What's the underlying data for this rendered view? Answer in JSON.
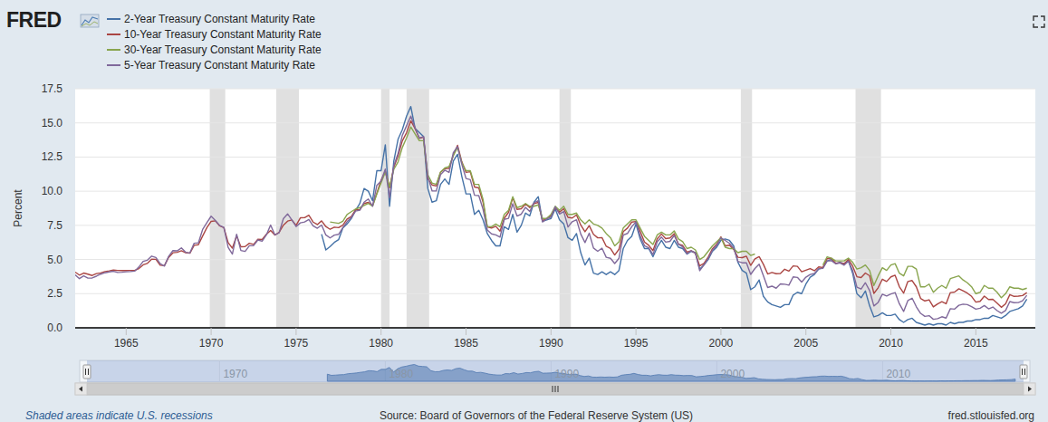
{
  "chart_data": {
    "type": "line",
    "logo": "FRED",
    "y_label": "Percent",
    "note": "Shaded areas indicate U.S. recessions",
    "source": "Source: Board of Governors of the Federal Reserve System (US)",
    "url": "fred.stlouisfed.org",
    "legend": "top-left",
    "grid": true,
    "xlim": [
      1962,
      2018.5
    ],
    "xticks": [
      1965,
      1970,
      1975,
      1980,
      1985,
      1990,
      1995,
      2000,
      2005,
      2010,
      2015
    ],
    "ylim": [
      0,
      17.5
    ],
    "yticks": [
      {
        "value": 0,
        "label": "0.0"
      },
      2.5,
      {
        "value": 5,
        "label": "5.0"
      },
      7.5,
      {
        "value": 10,
        "label": "10.0"
      },
      12.5,
      {
        "value": 15,
        "label": "15.0"
      },
      17.5
    ],
    "navigator_xticks": [
      1970,
      1980,
      1990,
      2000,
      2010
    ],
    "recessions": [
      {
        "start": 1969.92,
        "end": 1970.83
      },
      {
        "start": 1973.83,
        "end": 1975.17
      },
      {
        "start": 1980.0,
        "end": 1980.5
      },
      {
        "start": 1981.5,
        "end": 1982.83
      },
      {
        "start": 1990.5,
        "end": 1991.17
      },
      {
        "start": 2001.17,
        "end": 2001.83
      },
      {
        "start": 2007.92,
        "end": 2009.42
      }
    ],
    "x": [
      1962,
      1962.25,
      1962.5,
      1962.75,
      1963,
      1963.25,
      1963.5,
      1963.75,
      1964,
      1964.25,
      1964.5,
      1964.75,
      1965,
      1965.25,
      1965.5,
      1965.75,
      1966,
      1966.25,
      1966.5,
      1966.75,
      1967,
      1967.25,
      1967.5,
      1967.75,
      1968,
      1968.25,
      1968.5,
      1968.75,
      1969,
      1969.25,
      1969.5,
      1969.75,
      1970,
      1970.25,
      1970.5,
      1970.75,
      1971,
      1971.25,
      1971.5,
      1971.75,
      1972,
      1972.25,
      1972.5,
      1972.75,
      1973,
      1973.25,
      1973.5,
      1973.75,
      1974,
      1974.25,
      1974.5,
      1974.75,
      1975,
      1975.25,
      1975.5,
      1975.75,
      1976,
      1976.25,
      1976.5,
      1976.75,
      1977,
      1977.25,
      1977.5,
      1977.75,
      1978,
      1978.25,
      1978.5,
      1978.75,
      1979,
      1979.25,
      1979.5,
      1979.75,
      1980,
      1980.25,
      1980.5,
      1980.75,
      1981,
      1981.25,
      1981.5,
      1981.75,
      1982,
      1982.25,
      1982.5,
      1982.75,
      1983,
      1983.25,
      1983.5,
      1983.75,
      1984,
      1984.25,
      1984.5,
      1984.75,
      1985,
      1985.25,
      1985.5,
      1985.75,
      1986,
      1986.25,
      1986.5,
      1986.75,
      1987,
      1987.25,
      1987.5,
      1987.75,
      1988,
      1988.25,
      1988.5,
      1988.75,
      1989,
      1989.25,
      1989.5,
      1989.75,
      1990,
      1990.25,
      1990.5,
      1990.75,
      1991,
      1991.25,
      1991.5,
      1991.75,
      1992,
      1992.25,
      1992.5,
      1992.75,
      1993,
      1993.25,
      1993.5,
      1993.75,
      1994,
      1994.25,
      1994.5,
      1994.75,
      1995,
      1995.25,
      1995.5,
      1995.75,
      1996,
      1996.25,
      1996.5,
      1996.75,
      1997,
      1997.25,
      1997.5,
      1997.75,
      1998,
      1998.25,
      1998.5,
      1998.75,
      1999,
      1999.25,
      1999.5,
      1999.75,
      2000,
      2000.25,
      2000.5,
      2000.75,
      2001,
      2001.25,
      2001.5,
      2001.75,
      2002,
      2002.25,
      2002.5,
      2002.75,
      2003,
      2003.25,
      2003.5,
      2003.75,
      2004,
      2004.25,
      2004.5,
      2004.75,
      2005,
      2005.25,
      2005.5,
      2005.75,
      2006,
      2006.25,
      2006.5,
      2006.75,
      2007,
      2007.25,
      2007.5,
      2007.75,
      2008,
      2008.25,
      2008.5,
      2008.75,
      2009,
      2009.25,
      2009.5,
      2009.75,
      2010,
      2010.25,
      2010.5,
      2010.75,
      2011,
      2011.25,
      2011.5,
      2011.75,
      2012,
      2012.25,
      2012.5,
      2012.75,
      2013,
      2013.25,
      2013.5,
      2013.75,
      2014,
      2014.25,
      2014.5,
      2014.75,
      2015,
      2015.25,
      2015.5,
      2015.75,
      2016,
      2016.25,
      2016.5,
      2016.75,
      2017,
      2017.25,
      2017.5,
      2017.75,
      2018
    ],
    "series": [
      {
        "name": "2-Year Treasury Constant Maturity Rate",
        "color": "#4572a7",
        "values": [
          null,
          null,
          null,
          null,
          null,
          null,
          null,
          null,
          null,
          null,
          null,
          null,
          null,
          null,
          null,
          null,
          null,
          null,
          null,
          null,
          null,
          null,
          null,
          null,
          null,
          null,
          null,
          null,
          null,
          null,
          null,
          null,
          null,
          null,
          null,
          null,
          null,
          null,
          null,
          null,
          null,
          null,
          null,
          null,
          null,
          null,
          null,
          null,
          null,
          null,
          null,
          null,
          null,
          null,
          null,
          null,
          null,
          null,
          6.85,
          5.7,
          5.95,
          6.25,
          6.45,
          7.3,
          7.6,
          8,
          8.6,
          9.1,
          10.2,
          10,
          9.3,
          11.5,
          11.5,
          13.4,
          8.9,
          12.2,
          13.8,
          14.5,
          15.5,
          16.2,
          14.6,
          14.3,
          14,
          10.2,
          9.2,
          9.3,
          10.5,
          10.9,
          10.5,
          12.2,
          12.7,
          11.1,
          9.8,
          9.8,
          8.3,
          8.6,
          7.9,
          6.9,
          6.4,
          6,
          6,
          7.4,
          7.2,
          8.3,
          7,
          7.5,
          8.4,
          8.2,
          9.2,
          9.6,
          7.8,
          7.9,
          8,
          8.7,
          7.9,
          7.6,
          6.6,
          6.4,
          6.9,
          5.5,
          4.6,
          5.1,
          4,
          3.9,
          4.1,
          3.9,
          4.1,
          3.9,
          4.2,
          5.8,
          6.4,
          6.7,
          7.6,
          6.5,
          5.8,
          5.8,
          5.2,
          5.9,
          6.4,
          5.9,
          5.8,
          6.4,
          5.9,
          5.8,
          5.4,
          5.6,
          5.5,
          4.3,
          4.6,
          5,
          5.6,
          5.9,
          6.4,
          6.5,
          6.4,
          6,
          4.8,
          4.2,
          4,
          2.8,
          3,
          3.5,
          2.3,
          1.9,
          1.7,
          1.6,
          1.5,
          1.7,
          1.7,
          2.4,
          2.6,
          2.5,
          3.2,
          3.7,
          3.9,
          4.3,
          4.4,
          4.9,
          5,
          4.7,
          4.8,
          4.7,
          4.9,
          4,
          2.5,
          2.2,
          2.7,
          1.6,
          0.8,
          0.9,
          1.1,
          0.9,
          0.9,
          1,
          0.6,
          0.4,
          0.6,
          0.7,
          0.4,
          0.3,
          0.2,
          0.3,
          0.2,
          0.3,
          0.3,
          0.2,
          0.4,
          0.3,
          0.4,
          0.4,
          0.5,
          0.5,
          0.6,
          0.6,
          0.7,
          0.7,
          0.9,
          0.8,
          0.7,
          0.9,
          1.2,
          1.3,
          1.4,
          1.6,
          2.1
        ]
      },
      {
        "name": "10-Year Treasury Constant Maturity Rate",
        "color": "#aa4643",
        "values": [
          4.08,
          3.86,
          4.01,
          3.93,
          3.83,
          3.97,
          4.02,
          4.12,
          4.17,
          4.23,
          4.2,
          4.19,
          4.19,
          4.2,
          4.2,
          4.34,
          4.61,
          4.72,
          5.02,
          5.01,
          4.58,
          4.55,
          5.16,
          5.49,
          5.53,
          5.64,
          5.5,
          5.46,
          6.04,
          6.08,
          6.72,
          7.33,
          7.79,
          7.83,
          7.46,
          7.33,
          6.24,
          5.83,
          6.73,
          5.93,
          5.95,
          6.19,
          6.11,
          6.48,
          6.46,
          6.85,
          7.13,
          6.79,
          6.99,
          7.51,
          7.81,
          7.9,
          7.5,
          8.05,
          8.06,
          8.24,
          7.74,
          7.56,
          7.83,
          7.41,
          7.21,
          7.37,
          7.33,
          7.52,
          7.96,
          8.15,
          8.64,
          8.64,
          9.1,
          9.18,
          8.95,
          9.85,
          10.8,
          11.47,
          10.25,
          11.75,
          12.57,
          13.68,
          14.28,
          15.15,
          14.59,
          13.87,
          13.95,
          10.91,
          10.46,
          10.38,
          11.38,
          11.65,
          11.67,
          12.63,
          13.36,
          12.16,
          11.38,
          11.43,
          10.31,
          10.24,
          9.19,
          7.38,
          7.3,
          7.43,
          7.08,
          8.02,
          8.45,
          9.52,
          8.67,
          8.72,
          9.06,
          8.8,
          9.09,
          9.18,
          7.83,
          8.01,
          8.21,
          8.79,
          8.47,
          8.72,
          8.09,
          8.04,
          8.27,
          7.53,
          7.03,
          7.48,
          6.84,
          6.59,
          6.6,
          5.97,
          5.81,
          5.33,
          5.75,
          7.04,
          7.3,
          7.74,
          7.78,
          7.06,
          6.28,
          6.04,
          5.65,
          6.51,
          6.87,
          6.53,
          6.58,
          6.89,
          6.12,
          6.03,
          5.54,
          5.64,
          5.46,
          4.53,
          4.72,
          5.18,
          5.79,
          6.11,
          6.66,
          6,
          6.05,
          5.74,
          5.16,
          5.14,
          5.24,
          4.57,
          5.04,
          5.21,
          4.65,
          3.94,
          4.05,
          3.96,
          3.98,
          4.29,
          4.15,
          4.53,
          4.5,
          4.1,
          4.22,
          4.34,
          4.18,
          4.46,
          4.42,
          5.07,
          5.09,
          4.73,
          4.76,
          4.69,
          5,
          4.53,
          3.74,
          3.68,
          4.01,
          3.81,
          2.52,
          2.93,
          3.56,
          3.39,
          3.73,
          3.85,
          3.01,
          2.54,
          3.39,
          3.46,
          3,
          2.15,
          1.97,
          2.05,
          1.53,
          1.75,
          1.91,
          1.76,
          2.58,
          2.62,
          2.86,
          2.71,
          2.54,
          2.3,
          1.88,
          1.94,
          2.32,
          2.07,
          2.09,
          1.81,
          1.5,
          1.76,
          2.43,
          2.3,
          2.32,
          2.36,
          2.58
        ]
      },
      {
        "name": "30-Year Treasury Constant Maturity Rate",
        "color": "#89a54e",
        "values": [
          null,
          null,
          null,
          null,
          null,
          null,
          null,
          null,
          null,
          null,
          null,
          null,
          null,
          null,
          null,
          null,
          null,
          null,
          null,
          null,
          null,
          null,
          null,
          null,
          null,
          null,
          null,
          null,
          null,
          null,
          null,
          null,
          null,
          null,
          null,
          null,
          null,
          null,
          null,
          null,
          null,
          null,
          null,
          null,
          null,
          null,
          null,
          null,
          null,
          null,
          null,
          null,
          null,
          null,
          null,
          null,
          null,
          null,
          null,
          null,
          7.75,
          7.7,
          7.65,
          7.8,
          8.3,
          8.5,
          8.7,
          8.8,
          8.95,
          9.1,
          8.9,
          9.8,
          10.6,
          11.4,
          10.3,
          11.6,
          12.14,
          13.2,
          13.9,
          14.7,
          14.2,
          13.7,
          13.7,
          11.2,
          10.6,
          10.5,
          11.4,
          11.7,
          11.8,
          12.6,
          13.2,
          12.1,
          11.5,
          11.5,
          10.5,
          10.5,
          9.4,
          7.4,
          7.4,
          7.6,
          7.4,
          8.3,
          8.6,
          9.6,
          8.8,
          8.9,
          9.1,
          8.9,
          8.9,
          9,
          8,
          8,
          8.3,
          8.9,
          8.6,
          8.9,
          8.3,
          8.3,
          8.4,
          7.9,
          7.6,
          7.9,
          7.6,
          7.5,
          7.3,
          6.9,
          6.6,
          6,
          6.3,
          7.3,
          7.6,
          7.9,
          7.9,
          7.3,
          6.7,
          6.4,
          6.1,
          6.8,
          7,
          6.8,
          6.8,
          7.1,
          6.5,
          6.3,
          5.8,
          5.9,
          5.7,
          5,
          5.2,
          5.6,
          6,
          6.3,
          6.6,
          5.9,
          5.8,
          5.8,
          5.5,
          5.6,
          5.6,
          5.3,
          5.4,
          null,
          null,
          null,
          null,
          null,
          null,
          null,
          null,
          null,
          null,
          null,
          null,
          null,
          null,
          null,
          4.6,
          5.2,
          5.1,
          4.9,
          4.9,
          4.9,
          5.1,
          4.8,
          4.3,
          4.4,
          4.6,
          4.2,
          3.1,
          3.8,
          4.4,
          4.2,
          4.6,
          4.7,
          4,
          3.8,
          4.5,
          4.5,
          4.3,
          3,
          3,
          3.2,
          2.6,
          2.9,
          3.1,
          2.9,
          3.6,
          3.7,
          3.8,
          3.5,
          3.3,
          3,
          2.5,
          2.6,
          3.1,
          2.9,
          2.9,
          2.6,
          2.2,
          2.5,
          3,
          2.9,
          2.9,
          2.8,
          2.9
        ]
      },
      {
        "name": "5-Year Treasury Constant Maturity Rate",
        "color": "#80699b",
        "values": [
          3.88,
          3.6,
          3.8,
          3.64,
          3.65,
          3.78,
          3.93,
          4.03,
          4.09,
          4.14,
          4.05,
          4.07,
          4.1,
          4.12,
          4.15,
          4.45,
          4.86,
          4.95,
          5.25,
          5.15,
          4.7,
          4.52,
          5.23,
          5.65,
          5.63,
          5.85,
          5.53,
          5.48,
          6.19,
          6.22,
          7.2,
          7.7,
          8.17,
          7.86,
          7.5,
          7.35,
          5.89,
          5.4,
          6.85,
          5.66,
          5.59,
          6.01,
          6.02,
          6.43,
          6.34,
          6.8,
          7.52,
          6.81,
          6.95,
          7.99,
          8.34,
          7.9,
          7.41,
          7.68,
          7.75,
          7.93,
          7.46,
          7.29,
          7.52,
          6.8,
          6.58,
          6.79,
          6.84,
          7.33,
          7.77,
          8.07,
          8.54,
          8.61,
          9.2,
          9.43,
          8.9,
          10.43,
          10.74,
          11.62,
          9.53,
          11.86,
          12.77,
          14.09,
          14.79,
          15.5,
          14.65,
          13.89,
          14,
          11.08,
          10.03,
          10.02,
          11.21,
          11.54,
          11.37,
          12.81,
          13.27,
          11.98,
          10.93,
          10.85,
          9.7,
          9.68,
          8.68,
          7.16,
          6.88,
          6.8,
          6.64,
          7.94,
          8.01,
          9.08,
          8.18,
          8.32,
          8.82,
          8.51,
          9.15,
          9.3,
          7.75,
          7.97,
          8.12,
          8.86,
          8.33,
          8.51,
          7.38,
          7.77,
          7.91,
          6.87,
          6.24,
          6.93,
          5.84,
          5.6,
          5.83,
          5.16,
          5.09,
          4.71,
          5.09,
          6.78,
          6.91,
          7.4,
          7.76,
          6.72,
          6.01,
          5.86,
          5.36,
          6.3,
          6.64,
          6.27,
          6.33,
          6.76,
          6.12,
          5.93,
          5.42,
          5.64,
          5.46,
          4.18,
          4.6,
          5.08,
          5.68,
          6.03,
          6.58,
          6.4,
          6.18,
          5.84,
          4.86,
          4.76,
          4.76,
          3.91,
          4.34,
          4.65,
          3.81,
          2.95,
          3.05,
          2.9,
          3.21,
          3.19,
          3.12,
          3.73,
          3.69,
          3.35,
          3.71,
          3.9,
          3.98,
          4.33,
          4.35,
          4.9,
          4.91,
          4.69,
          4.75,
          4.59,
          4.88,
          4.2,
          2.98,
          2.84,
          3.3,
          2.73,
          1.6,
          1.86,
          2.46,
          2.33,
          2.48,
          2.58,
          1.76,
          1.2,
          1.99,
          2.17,
          1.54,
          1.06,
          0.84,
          0.89,
          0.62,
          0.67,
          0.81,
          0.71,
          1.4,
          1.37,
          1.65,
          1.73,
          1.7,
          1.55,
          1.37,
          1.43,
          1.63,
          1.39,
          1.52,
          1.26,
          1.07,
          1.27,
          1.92,
          1.84,
          1.85,
          1.98,
          2.38
        ]
      }
    ]
  }
}
